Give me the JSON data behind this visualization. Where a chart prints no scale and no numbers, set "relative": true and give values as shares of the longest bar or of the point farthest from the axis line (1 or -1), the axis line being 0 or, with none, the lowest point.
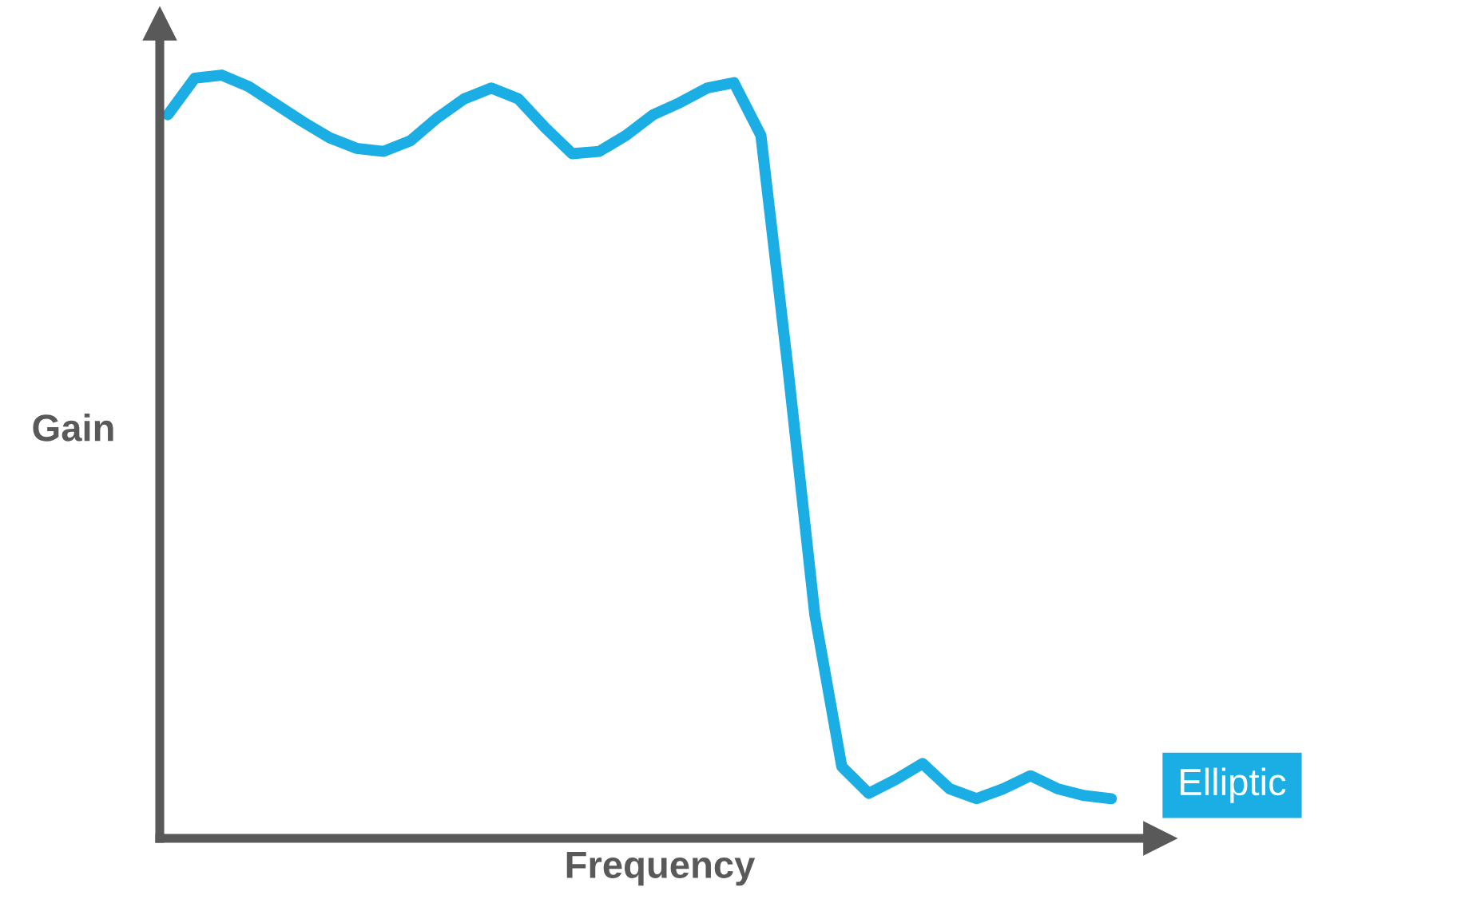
{
  "chart_data": {
    "type": "line",
    "relative": true,
    "xlabel": "Frequency",
    "ylabel": "Gain",
    "legend": "right",
    "grid": false,
    "marker": "none",
    "line_style": "solid",
    "categories": [
      null,
      null,
      null,
      null,
      null,
      null,
      null,
      null,
      null,
      null,
      null,
      null,
      null,
      null,
      null,
      null,
      null,
      null,
      null,
      null,
      null,
      null,
      null,
      null,
      null,
      null,
      null,
      null,
      null,
      null,
      null,
      null,
      null,
      null,
      null,
      null
    ],
    "series": [
      {
        "name": "Elliptic",
        "color": "#1aaee5",
        "values": [
          0.948,
          0.996,
          1.0,
          0.985,
          0.962,
          0.939,
          0.918,
          0.904,
          0.9,
          0.914,
          0.944,
          0.969,
          0.983,
          0.969,
          0.931,
          0.897,
          0.9,
          0.921,
          0.948,
          0.964,
          0.983,
          0.99,
          0.921,
          0.617,
          0.293,
          0.094,
          0.059,
          0.077,
          0.098,
          0.065,
          0.052,
          0.065,
          0.082,
          0.065,
          0.056,
          0.052
        ]
      }
    ]
  }
}
